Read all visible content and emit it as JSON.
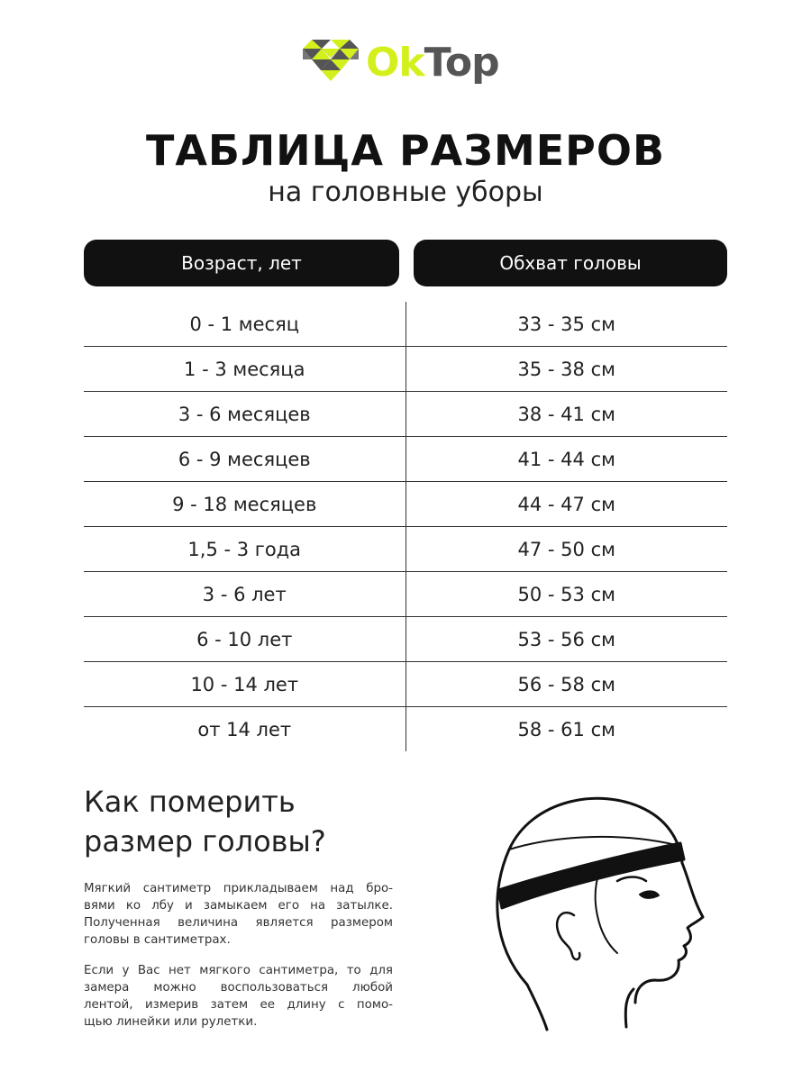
{
  "logo": {
    "text_ok": "Ok",
    "text_top": "Top",
    "colors": {
      "lime": "#d4f01c",
      "gray": "#555555"
    }
  },
  "title": "ТАБЛИЦА РАЗМЕРОВ",
  "subtitle": "на головные уборы",
  "table": {
    "headers": [
      "Возраст, лет",
      "Обхват головы"
    ],
    "rows": [
      [
        "0 - 1 месяц",
        "33 - 35 см"
      ],
      [
        "1 - 3 месяца",
        "35 - 38 см"
      ],
      [
        "3 - 6 месяцев",
        "38 - 41 см"
      ],
      [
        "6 - 9 месяцев",
        "41 - 44 см"
      ],
      [
        "9 - 18 месяцев",
        "44 - 47 см"
      ],
      [
        "1,5 - 3 года",
        "47 - 50 см"
      ],
      [
        "3 - 6 лет",
        "50 - 53 см"
      ],
      [
        "6 - 10 лет",
        "53 - 56 см"
      ],
      [
        "10 - 14 лет",
        "56 - 58 см"
      ],
      [
        "от 14 лет",
        "58 - 61 см"
      ]
    ]
  },
  "how_to": {
    "heading": [
      "Как померить",
      "размер головы?"
    ],
    "paragraph1": [
      "Мягкий сантиметр прикладываем над бро-",
      "вями ко лбу и замыкаем его на затылке.",
      "Полученная величина является размером",
      "головы в сантиметрах."
    ],
    "paragraph2": [
      "Если у Вас нет мягкого сантиметра, то для",
      "замера можно воспользоваться любой",
      "лентой, измерив затем ее длину с помо-",
      "щью линейки или рулетки."
    ]
  },
  "illustration": {
    "icon": "head-profile-with-measuring-band-icon"
  }
}
